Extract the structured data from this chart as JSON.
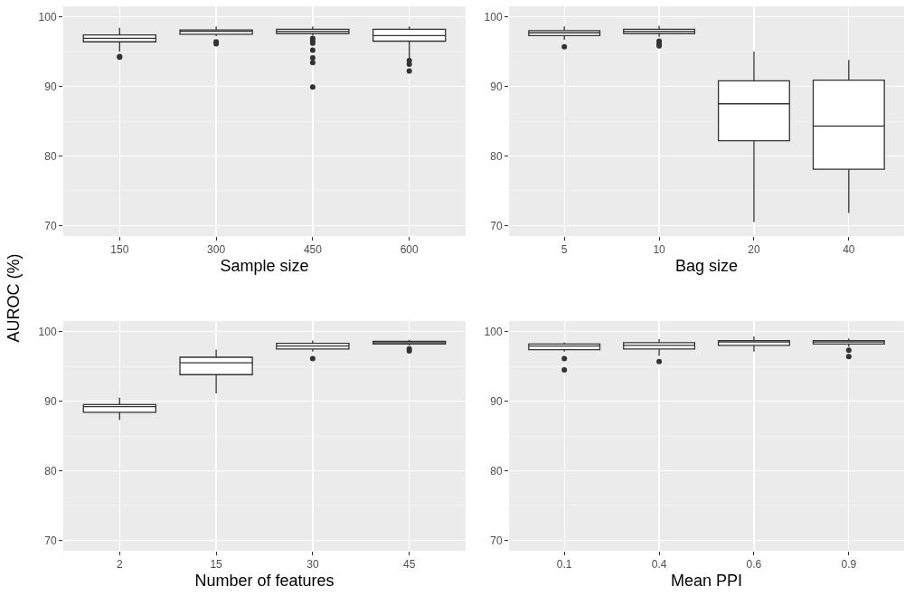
{
  "chart_data": [
    {
      "type": "box",
      "xlabel": "Sample size",
      "ylabel": "AUROC (%)",
      "categories": [
        "150",
        "300",
        "450",
        "600"
      ],
      "ylim": [
        68.5,
        101.5
      ],
      "yticks": [
        70,
        80,
        90,
        100
      ],
      "grid": true,
      "boxes": [
        {
          "low": 95.0,
          "q1": 96.4,
          "median": 96.9,
          "q3": 97.4,
          "high": 98.4,
          "outliers": [
            94.3,
            94.2
          ]
        },
        {
          "low": 97.2,
          "q1": 97.5,
          "median": 97.9,
          "q3": 98.1,
          "high": 98.6,
          "outliers": [
            96.4,
            96.1
          ]
        },
        {
          "low": 97.3,
          "q1": 97.6,
          "median": 97.9,
          "q3": 98.2,
          "high": 98.6,
          "outliers": [
            96.9,
            96.6,
            96.2,
            95.2,
            94.1,
            93.4,
            89.9
          ]
        },
        {
          "low": 93.9,
          "q1": 96.5,
          "median": 97.3,
          "q3": 98.2,
          "high": 98.6,
          "outliers": [
            93.7,
            93.2,
            92.2
          ]
        }
      ]
    },
    {
      "type": "box",
      "xlabel": "Bag size",
      "categories": [
        "5",
        "10",
        "20",
        "40"
      ],
      "ylim": [
        68.5,
        101.5
      ],
      "yticks": [
        70,
        80,
        90,
        100
      ],
      "grid": true,
      "boxes": [
        {
          "low": 96.7,
          "q1": 97.3,
          "median": 97.7,
          "q3": 98.0,
          "high": 98.6,
          "outliers": [
            95.7
          ]
        },
        {
          "low": 97.1,
          "q1": 97.6,
          "median": 97.9,
          "q3": 98.2,
          "high": 98.7,
          "outliers": [
            96.5,
            96.1,
            95.8
          ]
        },
        {
          "low": 70.5,
          "q1": 82.2,
          "median": 87.5,
          "q3": 90.8,
          "high": 95.0
        },
        {
          "low": 71.8,
          "q1": 78.1,
          "median": 84.3,
          "q3": 90.9,
          "high": 93.8
        }
      ]
    },
    {
      "type": "box",
      "xlabel": "Number of features",
      "categories": [
        "2",
        "15",
        "30",
        "45"
      ],
      "ylim": [
        68.5,
        101.5
      ],
      "yticks": [
        70,
        80,
        90,
        100
      ],
      "grid": true,
      "boxes": [
        {
          "low": 87.3,
          "q1": 88.4,
          "median": 89.2,
          "q3": 89.5,
          "high": 90.5
        },
        {
          "low": 91.1,
          "q1": 93.8,
          "median": 95.5,
          "q3": 96.3,
          "high": 97.4
        },
        {
          "low": 97.1,
          "q1": 97.5,
          "median": 97.9,
          "q3": 98.3,
          "high": 98.7,
          "outliers": [
            96.1
          ]
        },
        {
          "low": 98.0,
          "q1": 98.2,
          "median": 98.4,
          "q3": 98.6,
          "high": 98.8,
          "outliers": [
            97.5,
            97.2
          ]
        }
      ]
    },
    {
      "type": "box",
      "xlabel": "Mean PPI",
      "categories": [
        "0.1",
        "0.4",
        "0.6",
        "0.9"
      ],
      "ylim": [
        68.5,
        101.5
      ],
      "yticks": [
        70,
        80,
        90,
        100
      ],
      "grid": true,
      "boxes": [
        {
          "low": 97.1,
          "q1": 97.4,
          "median": 97.9,
          "q3": 98.2,
          "high": 98.4,
          "outliers": [
            96.1,
            94.5
          ]
        },
        {
          "low": 96.5,
          "q1": 97.5,
          "median": 98.0,
          "q3": 98.4,
          "high": 98.9,
          "outliers": [
            95.7
          ]
        },
        {
          "low": 97.1,
          "q1": 98.0,
          "median": 98.5,
          "q3": 98.7,
          "high": 99.3
        },
        {
          "low": 97.8,
          "q1": 98.2,
          "median": 98.5,
          "q3": 98.7,
          "high": 99.0,
          "outliers": [
            97.3,
            96.4
          ]
        }
      ]
    }
  ]
}
